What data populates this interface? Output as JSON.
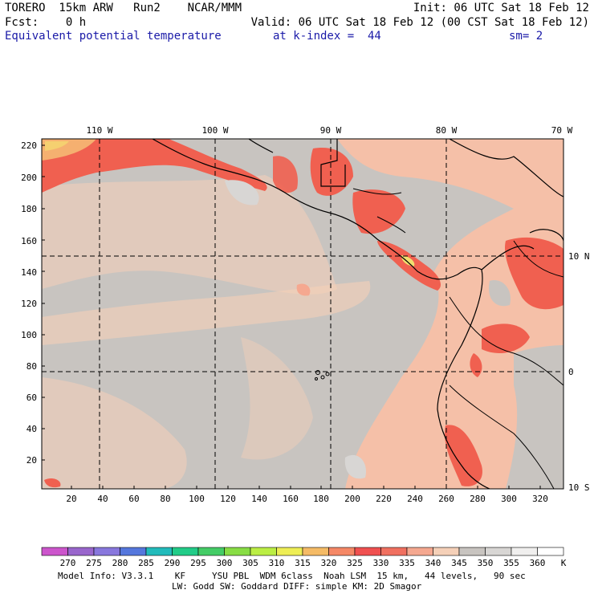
{
  "header": {
    "line1_left": "TORERO  15km ARW   Run2    NCAR/MMM",
    "line1_right": "Init: 06 UTC Sat 18 Feb 12",
    "line2_left": "Fcst:    0 h",
    "line2_right": "Valid: 06 UTC Sat 18 Feb 12 (00 CST Sat 18 Feb 12)",
    "line3_field": "Equivalent potential temperature",
    "line3_level": "at k-index =  44",
    "line3_smooth": "sm= 2"
  },
  "map": {
    "top_labels": [
      "110 W",
      "100 W",
      "90 W",
      "80 W",
      "70 W"
    ],
    "right_labels": [
      "10 N",
      "0",
      "10 S"
    ],
    "left_ticks": [
      "220",
      "200",
      "180",
      "160",
      "140",
      "120",
      "100",
      "80",
      "60",
      "40",
      "20"
    ],
    "bottom_ticks": [
      "20",
      "40",
      "60",
      "80",
      "100",
      "120",
      "140",
      "160",
      "180",
      "200",
      "220",
      "240",
      "260",
      "280",
      "300",
      "320"
    ]
  },
  "colorbar": {
    "labels": [
      "270",
      "275",
      "280",
      "285",
      "290",
      "295",
      "300",
      "305",
      "310",
      "315",
      "320",
      "325",
      "330",
      "335",
      "340",
      "345",
      "350",
      "355",
      "360"
    ],
    "unit": "K",
    "colors": [
      "#cc55cc",
      "#9966cc",
      "#8877dd",
      "#5577dd",
      "#22bbbb",
      "#22cc88",
      "#44cc66",
      "#88dd44",
      "#bbee44",
      "#eeee55",
      "#f5bb66",
      "#f58866",
      "#f05050",
      "#f07060",
      "#f5a890",
      "#f5d0b8",
      "#c8c4c0",
      "#d8d6d4",
      "#f0efee",
      "#ffffff"
    ]
  },
  "footer": {
    "line1": "Model Info: V3.3.1    KF     YSU PBL  WDM 6class  Noah LSM  15 km,   44 levels,   90 sec",
    "line2": "LW: Godd SW: Goddard DIFF: simple KM: 2D Smagor"
  }
}
